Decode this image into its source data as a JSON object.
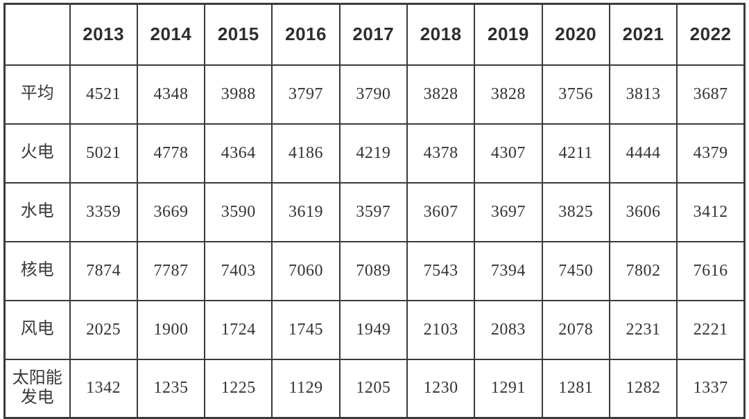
{
  "colors": {
    "border": "#3a3a3a",
    "text": "#333333",
    "background": "#ffffff"
  },
  "chart_data": {
    "type": "table",
    "title": "",
    "corner_label": "",
    "columns": [
      "2013",
      "2014",
      "2015",
      "2016",
      "2017",
      "2018",
      "2019",
      "2020",
      "2021",
      "2022"
    ],
    "rows": [
      {
        "label": "平均",
        "values": [
          4521,
          4348,
          3988,
          3797,
          3790,
          3828,
          3828,
          3756,
          3813,
          3687
        ]
      },
      {
        "label": "火电",
        "values": [
          5021,
          4778,
          4364,
          4186,
          4219,
          4378,
          4307,
          4211,
          4444,
          4379
        ]
      },
      {
        "label": "水电",
        "values": [
          3359,
          3669,
          3590,
          3619,
          3597,
          3607,
          3697,
          3825,
          3606,
          3412
        ]
      },
      {
        "label": "核电",
        "values": [
          7874,
          7787,
          7403,
          7060,
          7089,
          7543,
          7394,
          7450,
          7802,
          7616
        ]
      },
      {
        "label": "风电",
        "values": [
          2025,
          1900,
          1724,
          1745,
          1949,
          2103,
          2083,
          2078,
          2231,
          2221
        ]
      },
      {
        "label": "太阳能发电",
        "values": [
          1342,
          1235,
          1225,
          1129,
          1205,
          1230,
          1291,
          1281,
          1282,
          1337
        ]
      }
    ]
  }
}
